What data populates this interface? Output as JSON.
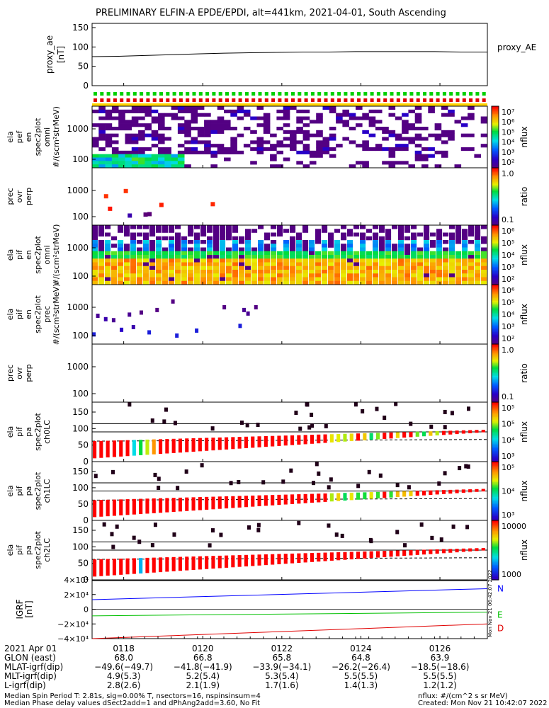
{
  "chart_data": {
    "type": "multi-panel-spectrogram",
    "title": "PRELIMINARY ELFIN-A EPDE/EPDI, alt=441km, 2021-04-01, South Ascending",
    "time_range": [
      "2021-04-01 01:16:50",
      "2021-04-01 01:27:05"
    ],
    "panels": [
      {
        "id": "proxy_ae",
        "type": "line",
        "ylabel": "proxy_ae [nT]",
        "ylim": [
          0,
          150
        ],
        "yticks": [
          "150",
          "100",
          "50",
          "0"
        ],
        "legend": "proxy_AE",
        "values": [
          75,
          76,
          78,
          80,
          82,
          84,
          85,
          86,
          87,
          87,
          88,
          88,
          88,
          88,
          87,
          87
        ]
      },
      {
        "id": "ela_pef_en",
        "type": "heatmap",
        "ylabel": [
          "ela",
          "pef",
          "en",
          "spec2plot",
          "omni",
          "#/(scm²strMeV)"
        ],
        "yticks": [
          "1000",
          "100"
        ],
        "colorbar": {
          "label": "nflux",
          "ticks": [
            "10⁷",
            "10⁶",
            "10⁵",
            "10⁴",
            "10³",
            "10²"
          ],
          "range": [
            10.0,
            10000000.0
          ],
          "log": true
        }
      },
      {
        "id": "prec_ovr_perp_e",
        "type": "scatter",
        "ylabel": [
          "prec",
          "ovr",
          "perp"
        ],
        "yticks": [
          "1000",
          "100"
        ],
        "colorbar": {
          "label": "ratio",
          "ticks": [
            "1.0",
            "0.1"
          ],
          "range": [
            0.01,
            2
          ],
          "log": true
        }
      },
      {
        "id": "ela_pif_en",
        "type": "heatmap",
        "ylabel": [
          "ela",
          "pif",
          "en",
          "spec2plot",
          "omni",
          "#/(scm²strMeV)"
        ],
        "yticks": [
          "1000",
          "100"
        ],
        "colorbar": {
          "label": "nflux",
          "ticks": [
            "10⁶",
            "10⁵",
            "10⁴",
            "10³",
            "10²"
          ],
          "range": [
            10.0,
            1000000.0
          ],
          "log": true
        }
      },
      {
        "id": "ela_pif_en_prec",
        "type": "scatter",
        "ylabel": [
          "ela",
          "pif",
          "en",
          "spec2plot",
          "prec",
          "#/(scm²strMeV)"
        ],
        "yticks": [
          "1000",
          "100"
        ],
        "colorbar": {
          "label": "nflux",
          "ticks": [
            "10⁶",
            "10⁵",
            "10⁴",
            "10³",
            "10²"
          ],
          "range": [
            10.0,
            1000000.0
          ],
          "log": true
        }
      },
      {
        "id": "prec_ovr_perp_i",
        "type": "empty",
        "ylabel": [
          "prec",
          "ovr",
          "perp"
        ],
        "yticks": [
          "1000",
          "100"
        ],
        "colorbar": {
          "label": "ratio",
          "ticks": [
            "1.0",
            "0.1"
          ],
          "range": [
            0.01,
            2
          ],
          "log": true
        }
      },
      {
        "id": "ela_pif_pa_ch0",
        "type": "pitch-angle",
        "ylabel": [
          "ela",
          "pif",
          "pa",
          "spec2plot",
          "ch0LC"
        ],
        "yticks": [
          "150",
          "100",
          "50",
          "0"
        ],
        "ylim": [
          0,
          180
        ],
        "colorbar": {
          "label": "nflux",
          "ticks": [
            "10⁵",
            "10⁵",
            "10⁴",
            "10³"
          ],
          "range": [
            500.0,
            200000.0
          ],
          "log": true
        }
      },
      {
        "id": "ela_pif_pa_ch1",
        "type": "pitch-angle",
        "ylabel": [
          "ela",
          "pif",
          "pa",
          "spec2plot",
          "ch1LC"
        ],
        "yticks": [
          "150",
          "100",
          "50",
          "0"
        ],
        "ylim": [
          0,
          180
        ],
        "colorbar": {
          "label": "nflux",
          "ticks": [
            "10⁵",
            "10⁴",
            "10³"
          ],
          "range": [
            500.0,
            200000.0
          ],
          "log": true
        }
      },
      {
        "id": "ela_pif_pa_ch2",
        "type": "pitch-angle",
        "ylabel": [
          "ela",
          "pif",
          "pa",
          "spec2plot",
          "ch2LC"
        ],
        "yticks": [
          "150",
          "100",
          "50",
          "0"
        ],
        "ylim": [
          0,
          180
        ],
        "colorbar": {
          "label": "nflux",
          "ticks": [
            "10000",
            "1000"
          ],
          "range": [
            500.0,
            20000.0
          ],
          "log": true
        }
      },
      {
        "id": "igrf",
        "type": "line",
        "ylabel": [
          "IGRF",
          "[nT]"
        ],
        "ylim": [
          -40000,
          40000
        ],
        "yticks": [
          "4×10⁴",
          "2×10⁴",
          "0",
          "−2×10⁴",
          "−4×10⁴"
        ],
        "series": [
          {
            "name": "N",
            "color": "#0000ff",
            "x": [
              0,
              1
            ],
            "y": [
              13000,
              28000
            ]
          },
          {
            "name": "E",
            "color": "#00c000",
            "x": [
              0,
              1
            ],
            "y": [
              -9000,
              -4000
            ]
          },
          {
            "name": "D",
            "color": "#e00000",
            "x": [
              0,
              1
            ],
            "y": [
              -40000,
              -20000
            ]
          },
          {
            "name": "",
            "color": "#000000",
            "x": [
              0,
              1
            ],
            "y": [
              39000,
              39000
            ]
          }
        ]
      }
    ],
    "xaxis": {
      "rows": [
        {
          "label": "2021 Apr 01",
          "values": [
            "0118",
            "0120",
            "0122",
            "0124",
            "0126"
          ]
        },
        {
          "label": "GLON (east)",
          "values": [
            "68.0",
            "66.8",
            "65.8",
            "64.8",
            "63.9"
          ]
        },
        {
          "label": "MLAT-igrf(dip)",
          "values": [
            "−49.6(−49.7)",
            "−41.8(−41.9)",
            "−33.9(−34.1)",
            "−26.2(−26.4)",
            "−18.5(−18.6)"
          ]
        },
        {
          "label": "MLT-igrf(dip)",
          "values": [
            "4.9(5.3)",
            "5.2(5.4)",
            "5.3(5.4)",
            "5.5(5.5)",
            "5.5(5.5)"
          ]
        },
        {
          "label": "L-igrf(dip)",
          "values": [
            "2.8(2.6)",
            "2.1(1.9)",
            "1.7(1.6)",
            "1.4(1.3)",
            "1.2(1.2)"
          ]
        }
      ]
    }
  },
  "footer": {
    "line1": "Median Spin Period T: 2.81s, sig=0.00% T, nsectors=16, nspinsinsum=4",
    "line2": "Median Phase delay values dSect2add=1 and dPhAng2add=3.60, No Fit",
    "units": "nflux: #/(cm^2 s sr MeV)",
    "created": "Created: Mon Nov 21 10:42:07 2022",
    "stamp": "Mon Nov 21 06:42:07 2022"
  },
  "colors": {
    "n": "#0000ff",
    "e": "#00c000",
    "d": "#e00000"
  }
}
